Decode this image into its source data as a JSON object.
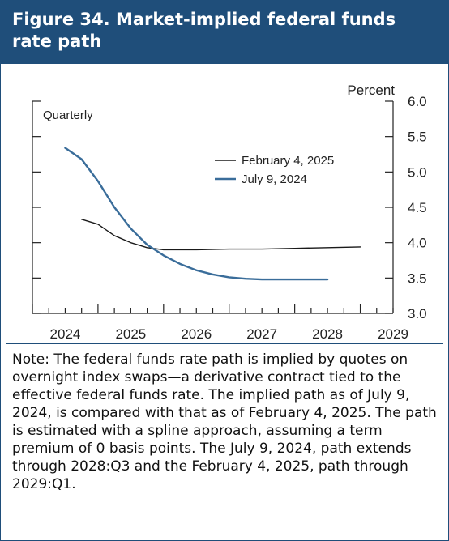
{
  "title": "Figure 34. Market-implied federal funds rate path",
  "note": "Note: The federal funds rate path is implied by quotes on overnight index swaps—a derivative contract tied to the effective federal funds rate. The implied path as of July 9, 2024, is compared with that as of February 4, 2025. The path is estimated with a spline approach, assuming a term premium of 0 basis points. The July 9, 2024, path extends through 2028:Q3 and the February 4, 2025, path through 2029:Q1.",
  "colors": {
    "header": "#1f4e7a",
    "series_july": "#3a6d9a",
    "series_feb": "#1a1a1a"
  },
  "chart_data": {
    "type": "line",
    "frequency_label": "Quarterly",
    "ylabel": "Percent",
    "ylim": [
      3.0,
      6.0
    ],
    "yticks": [
      "3.0",
      "3.5",
      "4.0",
      "4.5",
      "5.0",
      "5.5",
      "6.0"
    ],
    "xlim": [
      2024.0,
      2029.5
    ],
    "xticks": [
      "2024",
      "2025",
      "2026",
      "2027",
      "2028",
      "2029"
    ],
    "legend_position": "top-right",
    "series": [
      {
        "name": "February 4, 2025",
        "x": [
          2024.75,
          2025.0,
          2025.25,
          2025.5,
          2025.75,
          2026.0,
          2026.5,
          2027.0,
          2027.5,
          2028.0,
          2028.5,
          2029.0
        ],
        "values": [
          4.33,
          4.26,
          4.1,
          4.0,
          3.93,
          3.9,
          3.9,
          3.91,
          3.91,
          3.92,
          3.93,
          3.94
        ]
      },
      {
        "name": "July 9, 2024",
        "x": [
          2024.5,
          2024.75,
          2025.0,
          2025.25,
          2025.5,
          2025.75,
          2026.0,
          2026.25,
          2026.5,
          2026.75,
          2027.0,
          2027.25,
          2027.5,
          2027.75,
          2028.0,
          2028.25,
          2028.5
        ],
        "values": [
          5.34,
          5.18,
          4.87,
          4.5,
          4.2,
          3.97,
          3.82,
          3.7,
          3.61,
          3.55,
          3.51,
          3.49,
          3.48,
          3.48,
          3.48,
          3.48,
          3.48
        ]
      }
    ]
  }
}
